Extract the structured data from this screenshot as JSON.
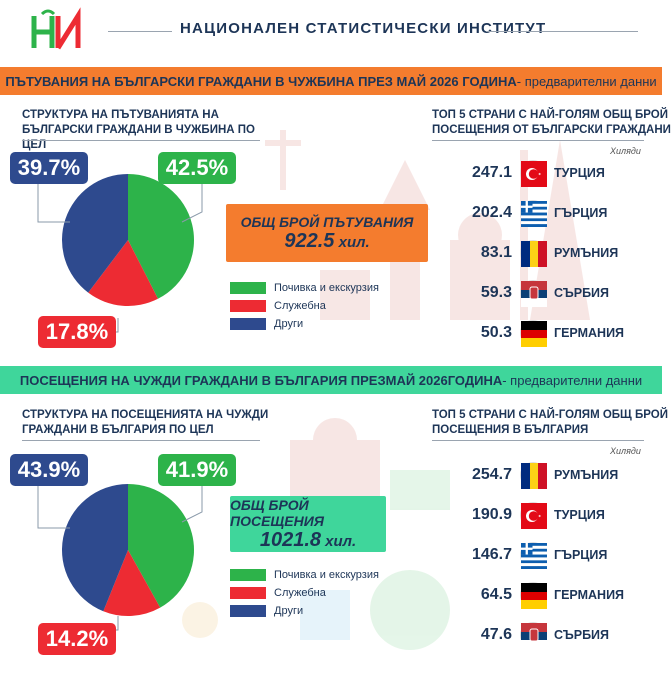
{
  "header": {
    "institute": "НАЦИОНАЛЕН  СТАТИСТИЧЕСКИ  ИНСТИТУТ"
  },
  "colors": {
    "green": "#2db34a",
    "red": "#ed2b33",
    "blue": "#2e4a8e",
    "orange_banner": "#f47c2e",
    "green_banner": "#3fd69b",
    "total1_bg": "#f47c2e",
    "total2_bg": "#3fd69b"
  },
  "section1": {
    "banner_bold": "ПЪТУВАНИЯ НА БЪЛГАРСКИ ГРАЖДАНИ В ЧУЖБИНА ПРЕЗ МАЙ 2026 ГОДИНА",
    "banner_thin": " - предварителни данни",
    "structure_title": "СТРУКТУРА НА ПЪТУВАНИЯТА НА БЪЛГАРСКИ ГРАЖДАНИ В ЧУЖБИНА ПО ЦЕЛ",
    "top5_title": "ТОП 5 СТРАНИ С НАЙ-ГОЛЯМ ОБЩ БРОЙ ПОСЕЩЕНИЯ ОТ БЪЛГАРСКИ ГРАЖДАНИ",
    "thousands": "Хиляди",
    "total_label": "ОБЩ БРОЙ ПЪТУВАНИЯ",
    "total_value": "922.5",
    "total_unit": " хил."
  },
  "section2": {
    "banner_bold_a": "ПОСЕЩЕНИЯ НА ЧУЖДИ ГРАЖДАНИ В БЪЛГАРИЯ ПРЕЗ ",
    "banner_bold_b": "МАЙ 2026",
    "banner_bold_c": " ГОДИНА",
    "banner_thin": " - предварителни данни",
    "structure_title": "СТРУКТУРА НА ПОСЕЩЕНИЯТА НА ЧУЖДИ ГРАЖДАНИ В БЪЛГАРИЯ ПО ЦЕЛ",
    "top5_title": "ТОП 5 СТРАНИ С НАЙ-ГОЛЯМ ОБЩ БРОЙ ПОСЕЩЕНИЯ В БЪЛГАРИЯ",
    "thousands": "Хиляди",
    "total_label": "ОБЩ БРОЙ ПОСЕЩЕНИЯ",
    "total_value": "1021.8",
    "total_unit": " хил."
  },
  "chart_data": [
    {
      "type": "pie",
      "title": "СТРУКТУРА НА ПЪТУВАНИЯТА НА БЪЛГАРСКИ ГРАЖДАНИ В ЧУЖБИНА ПО ЦЕЛ",
      "categories": [
        "Почивка и екскурзия",
        "Служебна",
        "Други"
      ],
      "values": [
        42.5,
        17.8,
        39.7
      ],
      "labels": [
        "42.5%",
        "17.8%",
        "39.7%"
      ],
      "colors": [
        "#2db34a",
        "#ed2b33",
        "#2e4a8e"
      ]
    },
    {
      "type": "table",
      "title": "ТОП 5 СТРАНИ С НАЙ-ГОЛЯМ ОБЩ БРОЙ ПОСЕЩЕНИЯ ОТ БЪЛГАРСКИ ГРАЖДАНИ",
      "unit": "Хиляди",
      "categories": [
        "ТУРЦИЯ",
        "ГЪРЦИЯ",
        "РУМЪНИЯ",
        "СЪРБИЯ",
        "ГЕРМАНИЯ"
      ],
      "values": [
        "247.1",
        "202.4",
        "83.1",
        "59.3",
        "50.3"
      ],
      "flags": [
        "turkey",
        "greece",
        "romania",
        "serbia",
        "germany"
      ]
    },
    {
      "type": "pie",
      "title": "СТРУКТУРА НА ПОСЕЩЕНИЯТА НА ЧУЖДИ ГРАЖДАНИ В БЪЛГАРИЯ ПО ЦЕЛ",
      "categories": [
        "Почивка и екскурзия",
        "Служебна",
        "Други"
      ],
      "values": [
        41.9,
        14.2,
        43.9
      ],
      "labels": [
        "41.9%",
        "14.2%",
        "43.9%"
      ],
      "colors": [
        "#2db34a",
        "#ed2b33",
        "#2e4a8e"
      ]
    },
    {
      "type": "table",
      "title": "ТОП 5 СТРАНИ С НАЙ-ГОЛЯМ ОБЩ БРОЙ ПОСЕЩЕНИЯ В БЪЛГАРИЯ",
      "unit": "Хиляди",
      "categories": [
        "РУМЪНИЯ",
        "ТУРЦИЯ",
        "ГЪРЦИЯ",
        "ГЕРМАНИЯ",
        "СЪРБИЯ"
      ],
      "values": [
        "254.7",
        "190.9",
        "146.7",
        "64.5",
        "47.6"
      ],
      "flags": [
        "romania",
        "turkey",
        "greece",
        "germany",
        "serbia"
      ]
    }
  ]
}
